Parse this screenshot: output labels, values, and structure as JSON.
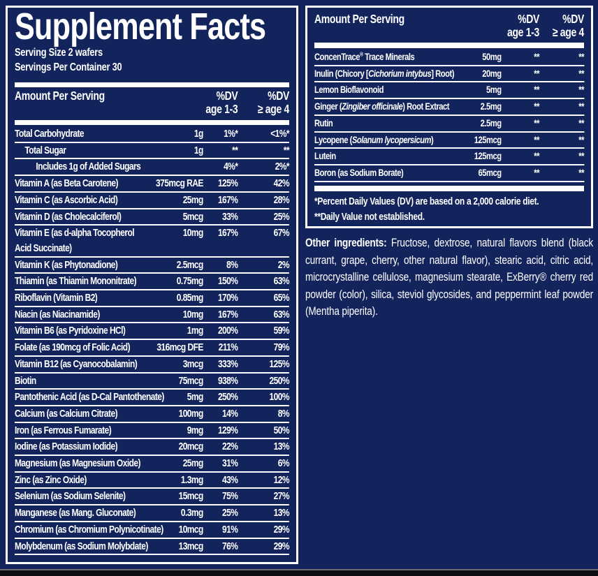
{
  "colors": {
    "background": "#13245C",
    "border_and_text": "#FFFFFF",
    "bottom_edge": "#0C0E13"
  },
  "left_panel": {
    "title": "Supplement Facts",
    "serving_size": "Serving Size 2 wafers",
    "servings_per_container": "Servings Per Container 30",
    "header": {
      "amount_label": "Amount Per Serving",
      "dv_label": "%DV",
      "age_1_3": "age 1-3",
      "age_4": "≥ age 4"
    },
    "rows": [
      {
        "name": [
          {
            "text": "Total Carbohydrate"
          }
        ],
        "amount": "1g",
        "dv1": "1%*",
        "dv2": "<1%*",
        "indent": 0
      },
      {
        "name": [
          {
            "text": "Total Sugar"
          }
        ],
        "amount": "1g",
        "dv1": "**",
        "dv2": "**",
        "indent": 1
      },
      {
        "name": [
          {
            "text": "Includes 1g of Added Sugars"
          }
        ],
        "amount": "",
        "dv1": "4%*",
        "dv2": "2%*",
        "indent": 2
      },
      {
        "name": [
          {
            "text": "Vitamin A (as Beta Carotene)"
          }
        ],
        "amount": "375mcg RAE",
        "dv1": "125%",
        "dv2": "42%",
        "indent": 0
      },
      {
        "name": [
          {
            "text": "Vitamin C (as Ascorbic Acid)"
          }
        ],
        "amount": "25mg",
        "dv1": "167%",
        "dv2": "28%",
        "indent": 0
      },
      {
        "name": [
          {
            "text": "Vitamin D (as Cholecalciferol)"
          }
        ],
        "amount": "5mcg",
        "dv1": "33%",
        "dv2": "25%",
        "indent": 0
      },
      {
        "name": [
          {
            "text": "Vitamin E (as d-alpha Tocopherol"
          },
          {
            "break": true
          },
          {
            "text": "Acid Succinate)"
          }
        ],
        "amount": "10mg",
        "dv1": "167%",
        "dv2": "67%",
        "indent": 0
      },
      {
        "name": [
          {
            "text": "Vitamin K (as Phytonadione)"
          }
        ],
        "amount": "2.5mcg",
        "dv1": "8%",
        "dv2": "2%",
        "indent": 0
      },
      {
        "name": [
          {
            "text": "Thiamin (as Thiamin Mononitrate)"
          }
        ],
        "amount": "0.75mg",
        "dv1": "150%",
        "dv2": "63%",
        "indent": 0
      },
      {
        "name": [
          {
            "text": "Riboflavin (Vitamin B2)"
          }
        ],
        "amount": "0.85mg",
        "dv1": "170%",
        "dv2": "65%",
        "indent": 0
      },
      {
        "name": [
          {
            "text": "Niacin (as Niacinamide)"
          }
        ],
        "amount": "10mg",
        "dv1": "167%",
        "dv2": "63%",
        "indent": 0
      },
      {
        "name": [
          {
            "text": "Vitamin B6 (as Pyridoxine HCl)"
          }
        ],
        "amount": "1mg",
        "dv1": "200%",
        "dv2": "59%",
        "indent": 0
      },
      {
        "name": [
          {
            "text": "Folate (as 190mcg of Folic Acid)"
          }
        ],
        "amount": "316mcg DFE",
        "dv1": "211%",
        "dv2": "79%",
        "indent": 0
      },
      {
        "name": [
          {
            "text": "Vitamin B12 (as Cyanocobalamin)"
          }
        ],
        "amount": "3mcg",
        "dv1": "333%",
        "dv2": "125%",
        "indent": 0
      },
      {
        "name": [
          {
            "text": "Biotin"
          }
        ],
        "amount": "75mcg",
        "dv1": "938%",
        "dv2": "250%",
        "indent": 0
      },
      {
        "name": [
          {
            "text": "Pantothenic Acid (as D-Cal Pantothenate)"
          }
        ],
        "amount": "5mg",
        "dv1": "250%",
        "dv2": "100%",
        "indent": 0
      },
      {
        "name": [
          {
            "text": "Calcium (as Calcium Citrate)"
          }
        ],
        "amount": "100mg",
        "dv1": "14%",
        "dv2": "8%",
        "indent": 0
      },
      {
        "name": [
          {
            "text": "Iron (as Ferrous Fumarate)"
          }
        ],
        "amount": "9mg",
        "dv1": "129%",
        "dv2": "50%",
        "indent": 0
      },
      {
        "name": [
          {
            "text": "Iodine (as Potassium Iodide)"
          }
        ],
        "amount": "20mcg",
        "dv1": "22%",
        "dv2": "13%",
        "indent": 0
      },
      {
        "name": [
          {
            "text": "Magnesium (as Magnesium Oxide)"
          }
        ],
        "amount": "25mg",
        "dv1": "31%",
        "dv2": "6%",
        "indent": 0
      },
      {
        "name": [
          {
            "text": "Zinc (as Zinc Oxide)"
          }
        ],
        "amount": "1.3mg",
        "dv1": "43%",
        "dv2": "12%",
        "indent": 0
      },
      {
        "name": [
          {
            "text": "Selenium (as Sodium Selenite)"
          }
        ],
        "amount": "15mcg",
        "dv1": "75%",
        "dv2": "27%",
        "indent": 0
      },
      {
        "name": [
          {
            "text": "Manganese (as Mang. Gluconate)"
          }
        ],
        "amount": "0.3mg",
        "dv1": "25%",
        "dv2": "13%",
        "indent": 0
      },
      {
        "name": [
          {
            "text": "Chromium (as Chromium Polynicotinate)"
          }
        ],
        "amount": "10mcg",
        "dv1": "91%",
        "dv2": "29%",
        "indent": 0
      },
      {
        "name": [
          {
            "text": "Molybdenum (as Sodium Molybdate)"
          }
        ],
        "amount": "13mcg",
        "dv1": "76%",
        "dv2": "29%",
        "indent": 0
      }
    ]
  },
  "right_panel": {
    "header": {
      "amount_label": "Amount Per Serving",
      "dv_label": "%DV",
      "age_1_3": "age 1-3",
      "age_4": "≥ age 4"
    },
    "rows": [
      {
        "name": [
          {
            "text": "ConcenTrace"
          },
          {
            "text": "®",
            "sup": true
          },
          {
            "text": " Trace Minerals"
          }
        ],
        "amount": "50mg",
        "dv1": "**",
        "dv2": "**",
        "indent": 0
      },
      {
        "name": [
          {
            "text": "Inulin (Chicory ["
          },
          {
            "text": "Cichorium intybus",
            "italic": true
          },
          {
            "text": "] Root)"
          }
        ],
        "amount": "20mg",
        "dv1": "**",
        "dv2": "**",
        "indent": 0
      },
      {
        "name": [
          {
            "text": "Lemon Bioflavonoid"
          }
        ],
        "amount": "5mg",
        "dv1": "**",
        "dv2": "**",
        "indent": 0
      },
      {
        "name": [
          {
            "text": "Ginger ("
          },
          {
            "text": "Zingiber officinale",
            "italic": true
          },
          {
            "text": ") Root Extract"
          }
        ],
        "amount": "2.5mg",
        "dv1": "**",
        "dv2": "**",
        "indent": 0
      },
      {
        "name": [
          {
            "text": "Rutin"
          }
        ],
        "amount": "2.5mg",
        "dv1": "**",
        "dv2": "**",
        "indent": 0
      },
      {
        "name": [
          {
            "text": "Lycopene ("
          },
          {
            "text": "Solanum lycopersicum",
            "italic": true
          },
          {
            "text": ")"
          }
        ],
        "amount": "125mcg",
        "dv1": "**",
        "dv2": "**",
        "indent": 0
      },
      {
        "name": [
          {
            "text": "Lutein"
          }
        ],
        "amount": "125mcg",
        "dv1": "**",
        "dv2": "**",
        "indent": 0
      },
      {
        "name": [
          {
            "text": "Boron (as Sodium Borate)"
          }
        ],
        "amount": "65mcg",
        "dv1": "**",
        "dv2": "**",
        "indent": 0
      }
    ],
    "footnotes": [
      "*Percent Daily Values (DV) are based on a 2,000 calorie diet.",
      "**Daily Value not established."
    ]
  },
  "other_ingredients": {
    "label": "Other ingredients:",
    "text": " Fructose, dextrose, natural flavors blend (black currant, grape, cherry, other natural flavor), stearic acid, citric acid, microcrystalline cellulose, magnesium stearate, ExBerry® cherry red powder (color), silica, steviol glycosides, and peppermint leaf powder (Mentha piperita)."
  }
}
